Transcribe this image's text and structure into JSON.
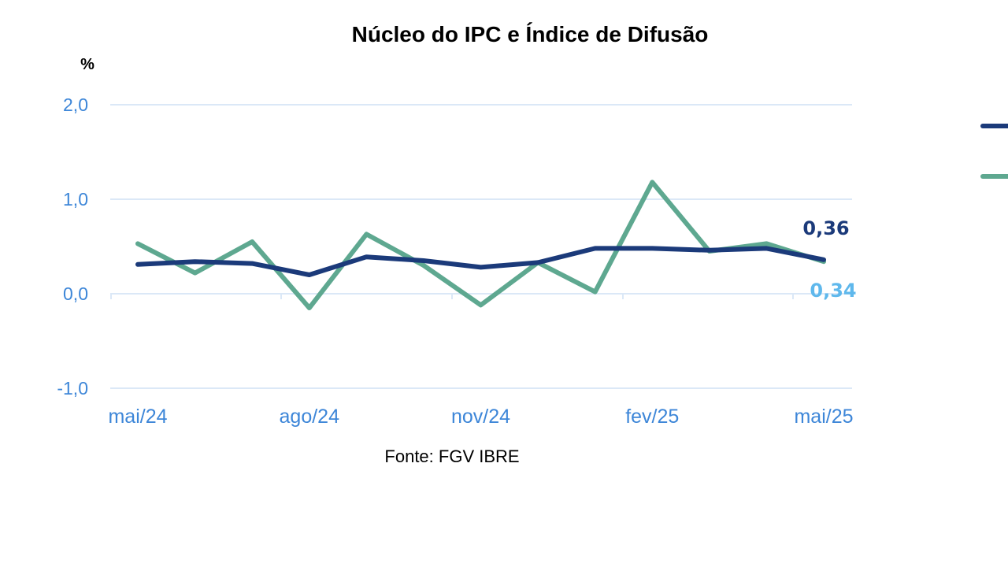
{
  "chart_data": {
    "type": "line",
    "title": "Núcleo do IPC e Índice de Difusão",
    "ylabel": "%",
    "source": "Fonte: FGV IBRE",
    "ylim": [
      -1.0,
      2.0
    ],
    "yticks": [
      {
        "value": -1.0,
        "label": "-1,0"
      },
      {
        "value": 0.0,
        "label": "0,0"
      },
      {
        "value": 1.0,
        "label": "1,0"
      },
      {
        "value": 2.0,
        "label": "2,0"
      }
    ],
    "x": [
      "mai/24",
      "jun/24",
      "jul/24",
      "ago/24",
      "set/24",
      "out/24",
      "nov/24",
      "dez/24",
      "jan/25",
      "fev/25",
      "mar/25",
      "abr/25",
      "mai/25"
    ],
    "xtick_labels": [
      "mai/24",
      "ago/24",
      "nov/24",
      "fev/25",
      "mai/25"
    ],
    "grid": true,
    "legend_position": "right",
    "series": [
      {
        "color": "#1b3a7a",
        "values": [
          0.31,
          0.34,
          0.32,
          0.2,
          0.39,
          0.35,
          0.28,
          0.33,
          0.48,
          0.48,
          0.46,
          0.48,
          0.36
        ],
        "end_label": "0,36",
        "end_label_color": "#1b3a7a"
      },
      {
        "color": "#5ea890",
        "values": [
          0.53,
          0.22,
          0.55,
          -0.15,
          0.63,
          0.3,
          -0.12,
          0.33,
          0.02,
          1.18,
          0.45,
          0.53,
          0.34
        ],
        "end_label": "0,34",
        "end_label_color": "#5fb8ec"
      }
    ],
    "colors": {
      "grid": "#dbe8f7",
      "tick_text": "#3d86d8"
    }
  }
}
